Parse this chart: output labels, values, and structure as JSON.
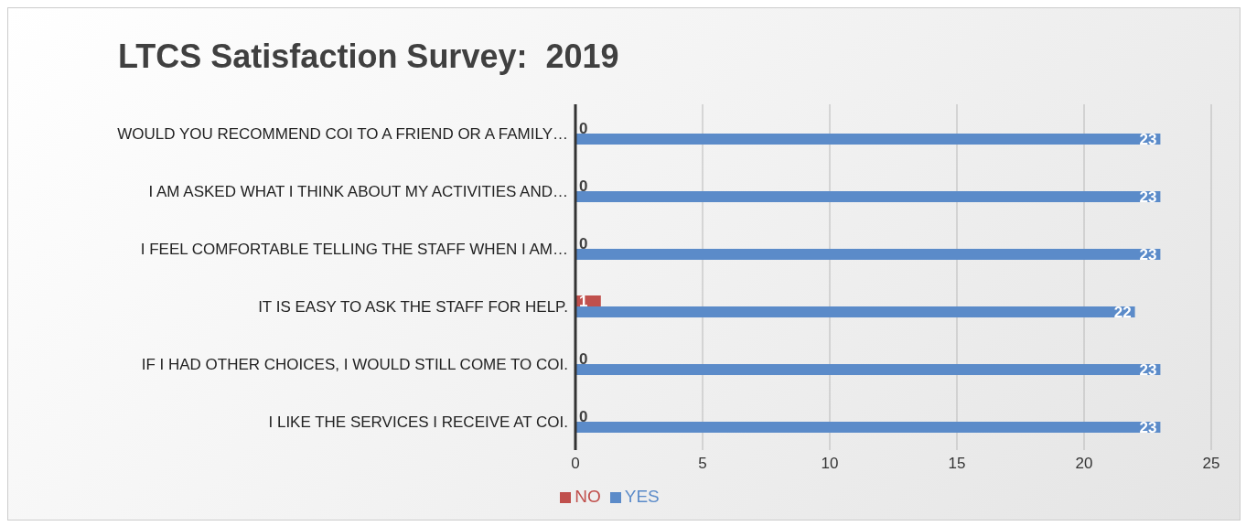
{
  "chart_data": {
    "type": "bar",
    "orientation": "horizontal",
    "title": "LTCS Satisfaction Survey:  2019",
    "categories": [
      "WOULD YOU RECOMMEND COI TO A FRIEND OR A FAMILY…",
      "I AM ASKED WHAT I THINK ABOUT MY ACTIVITIES AND…",
      "I FEEL COMFORTABLE TELLING THE STAFF WHEN I AM…",
      "IT IS EASY TO ASK THE STAFF FOR HELP.",
      "IF I HAD OTHER CHOICES, I WOULD STILL COME TO COI.",
      "I LIKE THE SERVICES I RECEIVE AT COI."
    ],
    "series": [
      {
        "name": "NO",
        "color": "#c0504d",
        "values": [
          0,
          0,
          0,
          1,
          0,
          0
        ]
      },
      {
        "name": "YES",
        "color": "#5b8bc9",
        "values": [
          23,
          23,
          23,
          22,
          23,
          23
        ]
      }
    ],
    "xlim": [
      0,
      25
    ],
    "xticks": [
      0,
      5,
      10,
      15,
      20,
      25
    ],
    "grid": "x",
    "legend": "bottom",
    "data_labels": true
  }
}
